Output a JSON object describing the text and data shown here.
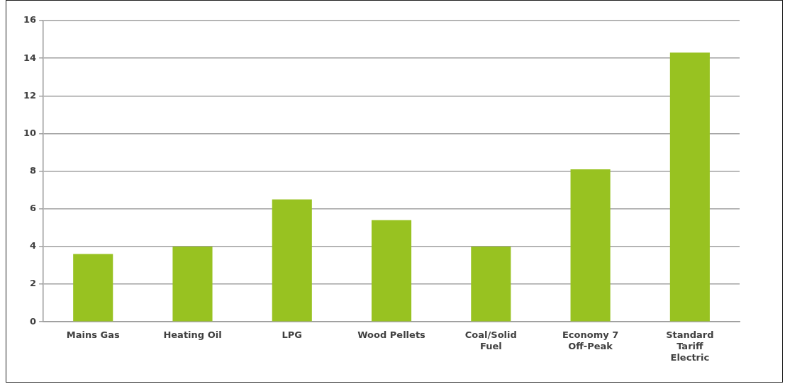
{
  "chart_data": {
    "type": "bar",
    "categories": [
      "Mains Gas",
      "Heating Oil",
      "LPG",
      "Wood Pellets",
      "Coal/Solid Fuel",
      "Economy 7 Off-Peak",
      "Standard Tariff Electric"
    ],
    "values": [
      3.6,
      4.0,
      6.5,
      5.4,
      4.0,
      8.1,
      14.3
    ],
    "color": "#98c221",
    "ylim": [
      0,
      16
    ],
    "yticks": [
      0,
      2,
      4,
      6,
      8,
      10,
      12,
      14,
      16
    ],
    "grid": "y"
  }
}
